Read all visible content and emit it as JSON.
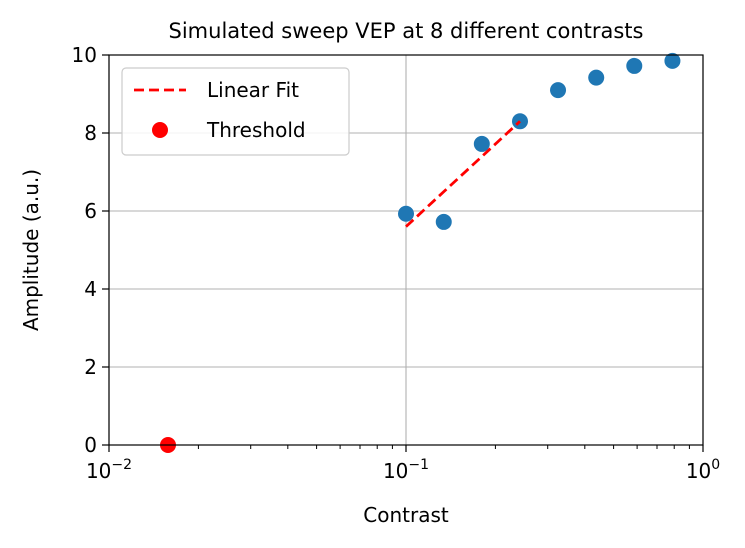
{
  "chart_data": {
    "type": "scatter",
    "title": "Simulated sweep VEP at 8 different contrasts",
    "xlabel": "Contrast",
    "ylabel": "Amplitude (a.u.)",
    "xscale": "log",
    "xlim": [
      0.01,
      1
    ],
    "ylim": [
      0,
      10
    ],
    "grid": true,
    "legend_position": "top-left",
    "x_ticks": [
      {
        "base": "10",
        "exp": "−2",
        "value": 0.01
      },
      {
        "base": "10",
        "exp": "−1",
        "value": 0.1
      },
      {
        "base": "10",
        "exp": "0",
        "value": 1
      }
    ],
    "y_ticks": [
      "0",
      "2",
      "4",
      "6",
      "8",
      "10"
    ],
    "series": [
      {
        "color": "#1f77b4",
        "marker": "circle",
        "x": [
          0.1,
          0.134,
          0.18,
          0.242,
          0.325,
          0.437,
          0.587,
          0.789
        ],
        "y": [
          5.93,
          5.72,
          7.72,
          8.3,
          9.1,
          9.42,
          9.72,
          9.85
        ]
      },
      {
        "name": "Linear Fit",
        "color": "#ff0000",
        "style": "dashed",
        "x": [
          0.1,
          0.242
        ],
        "y": [
          5.6,
          8.3
        ]
      },
      {
        "name": "Threshold",
        "color": "#ff0000",
        "marker": "circle",
        "x": [
          0.0158
        ],
        "y": [
          0
        ]
      }
    ]
  }
}
